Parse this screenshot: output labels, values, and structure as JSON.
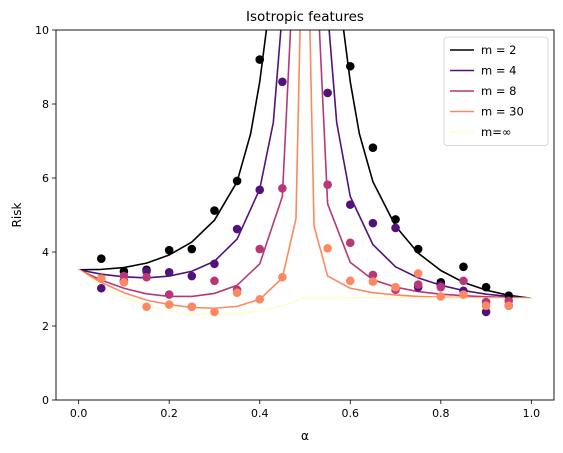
{
  "chart_data": {
    "type": "line",
    "title": "Isotropic features",
    "xlabel": "α",
    "ylabel": "Risk",
    "xlim": [
      -0.05,
      1.05
    ],
    "ylim": [
      0,
      10
    ],
    "xticks": [
      0.0,
      0.2,
      0.4,
      0.6,
      0.8,
      1.0
    ],
    "xtick_labels": [
      "0.0",
      "0.2",
      "0.4",
      "0.6",
      "0.8",
      "1.0"
    ],
    "yticks": [
      0,
      2,
      4,
      6,
      8,
      10
    ],
    "ytick_labels": [
      "0",
      "2",
      "4",
      "6",
      "8",
      "10"
    ],
    "grid": false,
    "legend_position": "top-right",
    "series": [
      {
        "name": "m = 2",
        "color": "#000004",
        "line_width": 1.6,
        "curve": [
          [
            0,
            3.52
          ],
          [
            0.05,
            3.53
          ],
          [
            0.1,
            3.58
          ],
          [
            0.15,
            3.7
          ],
          [
            0.2,
            3.92
          ],
          [
            0.25,
            4.27
          ],
          [
            0.3,
            4.86
          ],
          [
            0.35,
            5.9
          ],
          [
            0.38,
            7.2
          ],
          [
            0.4,
            8.6
          ],
          [
            0.42,
            10.5
          ],
          [
            0.58,
            10.5
          ],
          [
            0.6,
            8.6
          ],
          [
            0.62,
            7.2
          ],
          [
            0.65,
            5.9
          ],
          [
            0.7,
            4.7
          ],
          [
            0.75,
            3.97
          ],
          [
            0.8,
            3.5
          ],
          [
            0.85,
            3.18
          ],
          [
            0.9,
            2.97
          ],
          [
            0.95,
            2.83
          ],
          [
            1.0,
            2.75
          ]
        ],
        "points": [
          [
            0.05,
            3.82
          ],
          [
            0.1,
            3.48
          ],
          [
            0.15,
            3.52
          ],
          [
            0.2,
            4.05
          ],
          [
            0.25,
            4.08
          ],
          [
            0.3,
            5.12
          ],
          [
            0.35,
            5.92
          ],
          [
            0.4,
            9.2
          ],
          [
            0.6,
            9.02
          ],
          [
            0.65,
            6.82
          ],
          [
            0.7,
            4.88
          ],
          [
            0.75,
            4.08
          ],
          [
            0.8,
            3.18
          ],
          [
            0.85,
            3.6
          ],
          [
            0.9,
            3.05
          ],
          [
            0.95,
            2.82
          ]
        ]
      },
      {
        "name": "m = 4",
        "color": "#51127c",
        "line_width": 1.6,
        "curve": [
          [
            0,
            3.52
          ],
          [
            0.05,
            3.4
          ],
          [
            0.1,
            3.33
          ],
          [
            0.15,
            3.3
          ],
          [
            0.2,
            3.35
          ],
          [
            0.25,
            3.48
          ],
          [
            0.3,
            3.75
          ],
          [
            0.35,
            4.35
          ],
          [
            0.4,
            5.7
          ],
          [
            0.43,
            7.5
          ],
          [
            0.45,
            10.5
          ],
          [
            0.55,
            10.5
          ],
          [
            0.57,
            7.5
          ],
          [
            0.6,
            5.5
          ],
          [
            0.65,
            4.2
          ],
          [
            0.7,
            3.6
          ],
          [
            0.75,
            3.3
          ],
          [
            0.8,
            3.1
          ],
          [
            0.85,
            2.96
          ],
          [
            0.9,
            2.86
          ],
          [
            0.95,
            2.8
          ],
          [
            1.0,
            2.75
          ]
        ],
        "points": [
          [
            0.05,
            3.02
          ],
          [
            0.1,
            3.22
          ],
          [
            0.15,
            3.48
          ],
          [
            0.2,
            3.45
          ],
          [
            0.25,
            3.35
          ],
          [
            0.3,
            3.68
          ],
          [
            0.35,
            4.62
          ],
          [
            0.4,
            5.68
          ],
          [
            0.45,
            8.6
          ],
          [
            0.55,
            8.3
          ],
          [
            0.6,
            5.28
          ],
          [
            0.65,
            4.78
          ],
          [
            0.7,
            4.65
          ],
          [
            0.75,
            3.05
          ],
          [
            0.8,
            3.1
          ],
          [
            0.85,
            2.95
          ],
          [
            0.9,
            2.38
          ],
          [
            0.95,
            2.55
          ]
        ]
      },
      {
        "name": "m = 8",
        "color": "#b73779",
        "line_width": 1.6,
        "curve": [
          [
            0,
            3.52
          ],
          [
            0.05,
            3.24
          ],
          [
            0.1,
            3.02
          ],
          [
            0.15,
            2.87
          ],
          [
            0.2,
            2.8
          ],
          [
            0.25,
            2.8
          ],
          [
            0.3,
            2.88
          ],
          [
            0.35,
            3.1
          ],
          [
            0.4,
            3.68
          ],
          [
            0.45,
            5.5
          ],
          [
            0.47,
            10.5
          ],
          [
            0.53,
            10.5
          ],
          [
            0.55,
            5.3
          ],
          [
            0.6,
            3.72
          ],
          [
            0.65,
            3.25
          ],
          [
            0.7,
            3.05
          ],
          [
            0.75,
            2.93
          ],
          [
            0.8,
            2.86
          ],
          [
            0.85,
            2.82
          ],
          [
            0.9,
            2.79
          ],
          [
            0.95,
            2.77
          ],
          [
            1.0,
            2.75
          ]
        ],
        "points": [
          [
            0.05,
            3.28
          ],
          [
            0.1,
            3.35
          ],
          [
            0.15,
            3.32
          ],
          [
            0.2,
            2.85
          ],
          [
            0.25,
            2.52
          ],
          [
            0.3,
            3.22
          ],
          [
            0.35,
            2.98
          ],
          [
            0.4,
            4.08
          ],
          [
            0.45,
            5.72
          ],
          [
            0.55,
            5.82
          ],
          [
            0.6,
            4.25
          ],
          [
            0.65,
            3.38
          ],
          [
            0.7,
            2.98
          ],
          [
            0.75,
            3.12
          ],
          [
            0.8,
            3.05
          ],
          [
            0.85,
            3.22
          ],
          [
            0.9,
            2.65
          ],
          [
            0.95,
            2.68
          ]
        ]
      },
      {
        "name": "m = 30",
        "color": "#fc8961",
        "line_width": 1.6,
        "curve": [
          [
            0,
            3.52
          ],
          [
            0.05,
            3.18
          ],
          [
            0.1,
            2.9
          ],
          [
            0.15,
            2.7
          ],
          [
            0.2,
            2.58
          ],
          [
            0.25,
            2.5
          ],
          [
            0.3,
            2.48
          ],
          [
            0.35,
            2.53
          ],
          [
            0.4,
            2.72
          ],
          [
            0.45,
            3.3
          ],
          [
            0.48,
            4.9
          ],
          [
            0.49,
            10.5
          ],
          [
            0.51,
            10.5
          ],
          [
            0.52,
            4.7
          ],
          [
            0.55,
            3.35
          ],
          [
            0.6,
            3.02
          ],
          [
            0.65,
            2.9
          ],
          [
            0.7,
            2.84
          ],
          [
            0.75,
            2.8
          ],
          [
            0.8,
            2.78
          ],
          [
            0.85,
            2.77
          ],
          [
            0.9,
            2.76
          ],
          [
            0.95,
            2.75
          ],
          [
            1.0,
            2.75
          ]
        ],
        "points": [
          [
            0.05,
            3.28
          ],
          [
            0.1,
            3.18
          ],
          [
            0.15,
            2.52
          ],
          [
            0.2,
            2.58
          ],
          [
            0.25,
            2.52
          ],
          [
            0.3,
            2.38
          ],
          [
            0.35,
            2.9
          ],
          [
            0.4,
            2.72
          ],
          [
            0.45,
            3.32
          ],
          [
            0.55,
            4.1
          ],
          [
            0.6,
            3.22
          ],
          [
            0.65,
            3.2
          ],
          [
            0.7,
            3.05
          ],
          [
            0.75,
            3.42
          ],
          [
            0.8,
            2.8
          ],
          [
            0.85,
            2.85
          ],
          [
            0.9,
            2.55
          ],
          [
            0.95,
            2.55
          ]
        ]
      },
      {
        "name": "m=∞",
        "color": "#fcfdbf",
        "line_width": 1.2,
        "curve": [
          [
            0,
            3.52
          ],
          [
            0.05,
            3.1
          ],
          [
            0.1,
            2.78
          ],
          [
            0.15,
            2.55
          ],
          [
            0.2,
            2.4
          ],
          [
            0.25,
            2.32
          ],
          [
            0.3,
            2.3
          ],
          [
            0.35,
            2.33
          ],
          [
            0.4,
            2.41
          ],
          [
            0.45,
            2.54
          ],
          [
            0.49,
            2.72
          ],
          [
            0.5,
            2.77
          ],
          [
            0.6,
            2.77
          ],
          [
            0.7,
            2.76
          ],
          [
            0.8,
            2.76
          ],
          [
            0.9,
            2.75
          ],
          [
            1.0,
            2.75
          ]
        ],
        "points": []
      }
    ]
  }
}
